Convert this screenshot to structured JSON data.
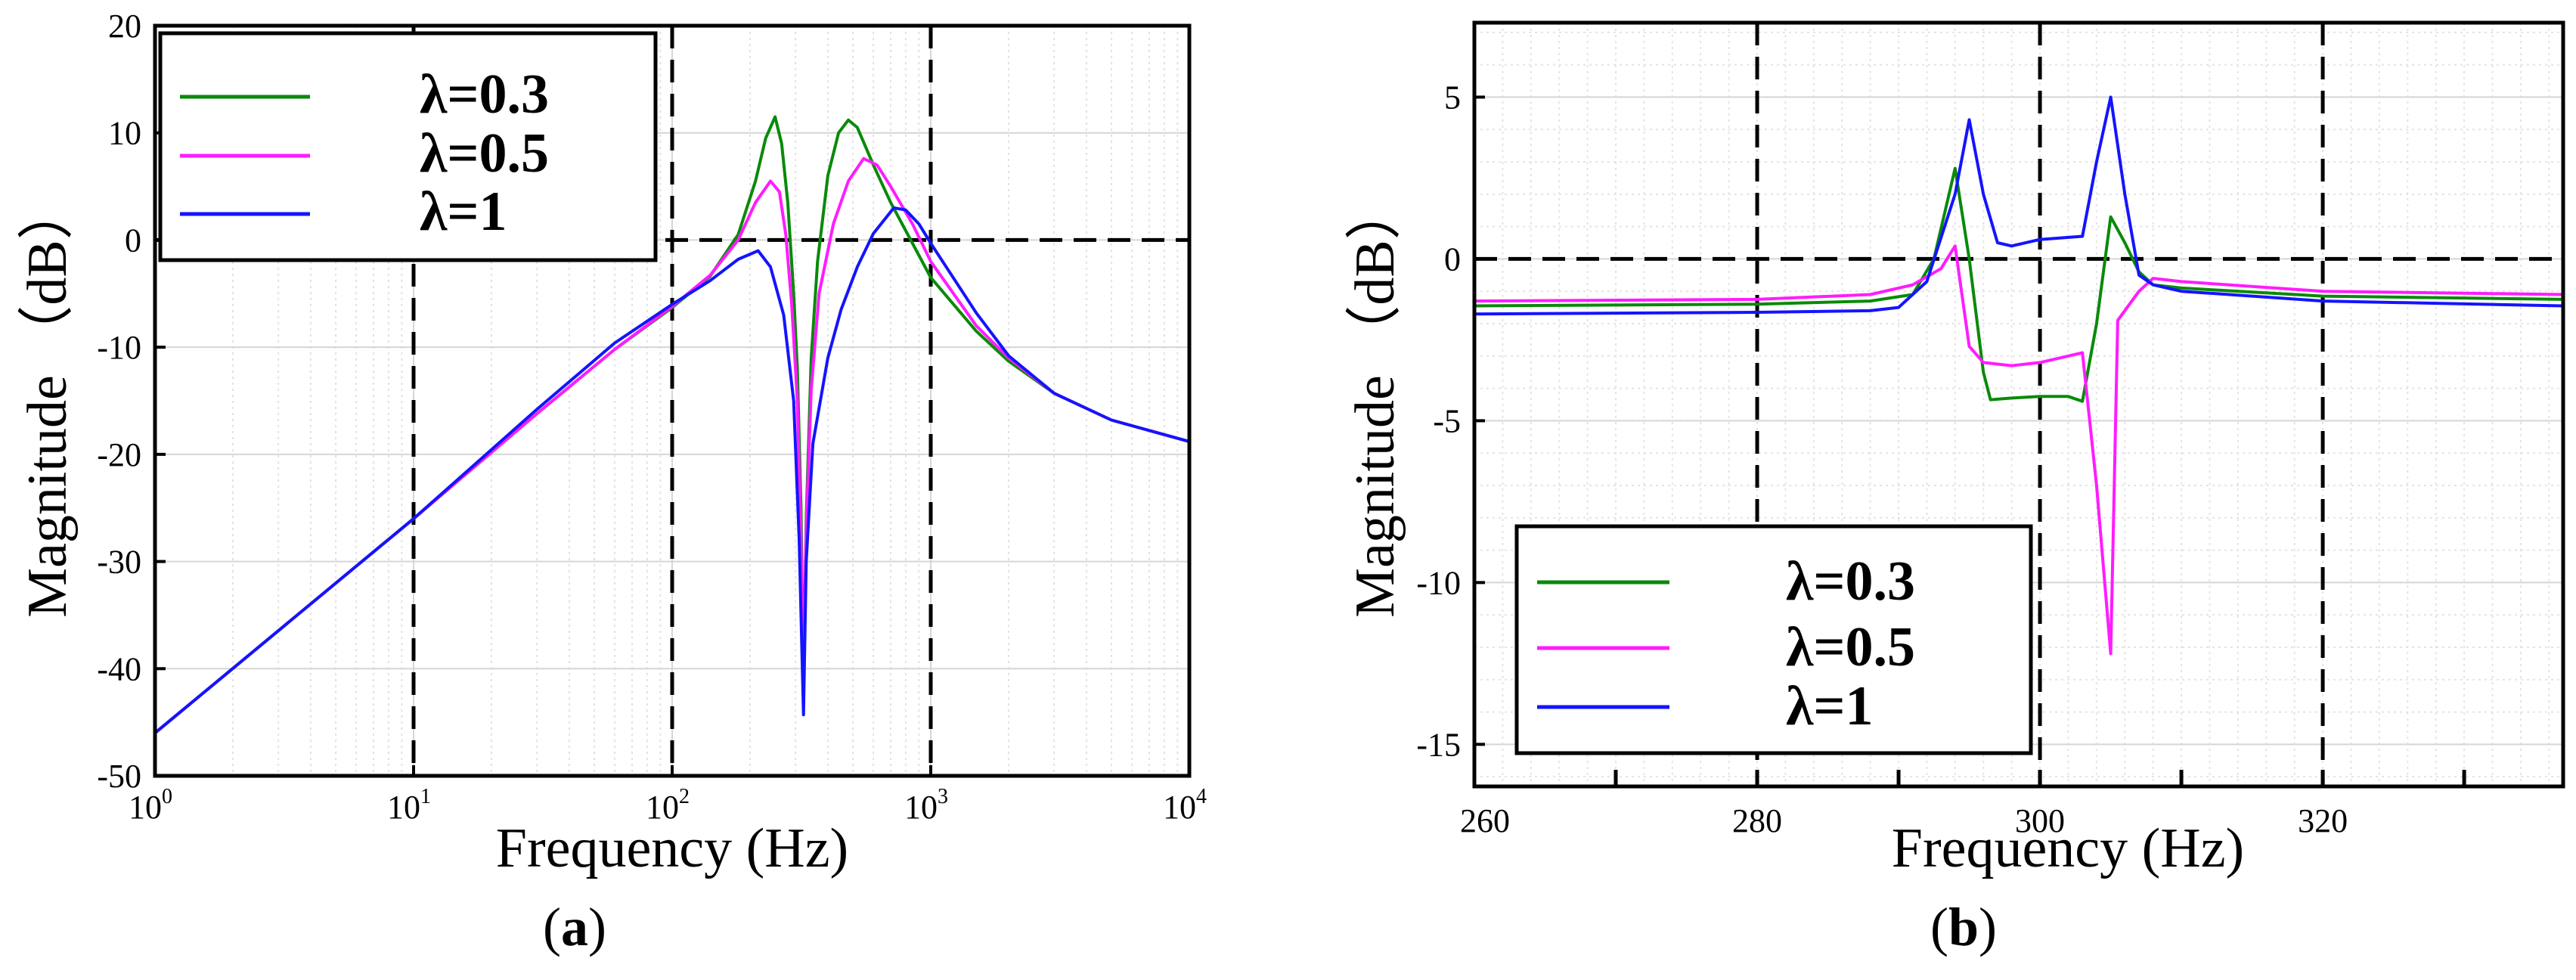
{
  "colors": {
    "l03": "#0a8a0a",
    "l05": "#ff1cff",
    "l1": "#1414ff"
  },
  "panel_a": {
    "xlabel": "Frequency (Hz)",
    "ylabel": "Magnitude （dB）",
    "caption_open": "(",
    "caption_letter": "a",
    "caption_close": ")",
    "legend": [
      "λ=0.3",
      "λ=0.5",
      "λ=1"
    ]
  },
  "panel_b": {
    "xlabel": "Frequency (Hz)",
    "ylabel": "Magnitude （dB）",
    "caption_open": "(",
    "caption_letter": "b",
    "caption_close": ")",
    "legend": [
      "λ=0.3",
      "λ=0.5",
      "λ=1"
    ]
  },
  "chart_data": [
    {
      "type": "line",
      "title": "",
      "xlabel": "Frequency (Hz)",
      "ylabel": "Magnitude （dB）",
      "xscale": "log",
      "xlim": [
        1,
        10000
      ],
      "ylim": [
        -50,
        20
      ],
      "xticks": [
        {
          "value": 1,
          "base": "10",
          "exp": "0"
        },
        {
          "value": 10,
          "base": "10",
          "exp": "1"
        },
        {
          "value": 100,
          "base": "10",
          "exp": "2"
        },
        {
          "value": 1000,
          "base": "10",
          "exp": "3"
        },
        {
          "value": 10000,
          "base": "10",
          "exp": "4"
        }
      ],
      "yticks": [
        20,
        10,
        0,
        -10,
        -20,
        -30,
        -40,
        -50
      ],
      "reference_lines": {
        "vertical": [
          10,
          100,
          1000
        ],
        "horizontal": [
          0
        ]
      },
      "grid": true,
      "legend_position": "top-left",
      "series": [
        {
          "name": "λ=0.3",
          "color": "#0a8a0a",
          "points": [
            [
              1,
              -46
            ],
            [
              10,
              -26
            ],
            [
              30,
              -16.2
            ],
            [
              60,
              -10.2
            ],
            [
              100,
              -6.3
            ],
            [
              140,
              -3.4
            ],
            [
              180,
              0.5
            ],
            [
              210,
              5.5
            ],
            [
              230,
              9.5
            ],
            [
              250,
              11.5
            ],
            [
              265,
              9
            ],
            [
              280,
              3.5
            ],
            [
              295,
              -5
            ],
            [
              305,
              -12
            ],
            [
              315,
              -25
            ],
            [
              322,
              -42
            ],
            [
              330,
              -26
            ],
            [
              345,
              -11
            ],
            [
              365,
              -2
            ],
            [
              400,
              6
            ],
            [
              440,
              10
            ],
            [
              480,
              11.2
            ],
            [
              520,
              10.5
            ],
            [
              600,
              7
            ],
            [
              700,
              3.5
            ],
            [
              1000,
              -3.5
            ],
            [
              1500,
              -8.5
            ],
            [
              2000,
              -11.3
            ],
            [
              3000,
              -14.3
            ],
            [
              5000,
              -16.8
            ],
            [
              10000,
              -18.8
            ]
          ]
        },
        {
          "name": "λ=0.5",
          "color": "#ff1cff",
          "points": [
            [
              1,
              -46
            ],
            [
              10,
              -26
            ],
            [
              30,
              -16.2
            ],
            [
              60,
              -10.2
            ],
            [
              100,
              -6.2
            ],
            [
              140,
              -3.3
            ],
            [
              180,
              0
            ],
            [
              210,
              3.5
            ],
            [
              240,
              5.5
            ],
            [
              260,
              4.5
            ],
            [
              275,
              0.5
            ],
            [
              290,
              -6
            ],
            [
              305,
              -15
            ],
            [
              315,
              -28
            ],
            [
              322,
              -42
            ],
            [
              330,
              -27
            ],
            [
              345,
              -14
            ],
            [
              370,
              -5
            ],
            [
              420,
              1.5
            ],
            [
              480,
              5.5
            ],
            [
              550,
              7.6
            ],
            [
              620,
              7
            ],
            [
              700,
              5
            ],
            [
              850,
              1.5
            ],
            [
              1000,
              -2
            ],
            [
              1500,
              -8
            ],
            [
              2000,
              -11
            ],
            [
              3000,
              -14.3
            ],
            [
              5000,
              -16.8
            ],
            [
              10000,
              -18.8
            ]
          ]
        },
        {
          "name": "λ=1",
          "color": "#1414ff",
          "points": [
            [
              1,
              -46
            ],
            [
              10,
              -26
            ],
            [
              30,
              -15.8
            ],
            [
              60,
              -9.6
            ],
            [
              100,
              -6
            ],
            [
              140,
              -3.8
            ],
            [
              180,
              -1.8
            ],
            [
              215,
              -1
            ],
            [
              240,
              -2.5
            ],
            [
              270,
              -7
            ],
            [
              295,
              -15
            ],
            [
              310,
              -28
            ],
            [
              322,
              -44.3
            ],
            [
              330,
              -30
            ],
            [
              350,
              -19
            ],
            [
              400,
              -11
            ],
            [
              450,
              -6.5
            ],
            [
              520,
              -2.5
            ],
            [
              600,
              0.6
            ],
            [
              720,
              3
            ],
            [
              800,
              2.8
            ],
            [
              900,
              1.5
            ],
            [
              1000,
              -0.3
            ],
            [
              1500,
              -6.8
            ],
            [
              2000,
              -10.8
            ],
            [
              3000,
              -14.3
            ],
            [
              5000,
              -16.8
            ],
            [
              10000,
              -18.8
            ]
          ]
        }
      ]
    },
    {
      "type": "line",
      "title": "",
      "xlabel": "Frequency (Hz)",
      "ylabel": "Magnitude （dB）",
      "xscale": "linear",
      "xlim": [
        260,
        337
      ],
      "ylim": [
        -16.3,
        7.3
      ],
      "xticks": [
        260,
        280,
        300,
        320
      ],
      "yticks": [
        5,
        0,
        -5,
        -10,
        -15
      ],
      "reference_lines": {
        "vertical": [
          280,
          300,
          320
        ],
        "horizontal": [
          0
        ]
      },
      "grid": true,
      "legend_position": "bottom-left",
      "series": [
        {
          "name": "λ=0.3",
          "color": "#0a8a0a",
          "points": [
            [
              260,
              -1.45
            ],
            [
              280,
              -1.4
            ],
            [
              288,
              -1.3
            ],
            [
              291,
              -1.1
            ],
            [
              292.5,
              0
            ],
            [
              294,
              2.8
            ],
            [
              295,
              0
            ],
            [
              296,
              -3.5
            ],
            [
              296.5,
              -4.35
            ],
            [
              298,
              -4.3
            ],
            [
              300,
              -4.25
            ],
            [
              302,
              -4.25
            ],
            [
              303,
              -4.4
            ],
            [
              304,
              -2
            ],
            [
              305,
              1.3
            ],
            [
              306,
              0.5
            ],
            [
              307,
              -0.4
            ],
            [
              308,
              -0.8
            ],
            [
              310,
              -0.9
            ],
            [
              320,
              -1.15
            ],
            [
              337,
              -1.25
            ]
          ]
        },
        {
          "name": "λ=0.5",
          "color": "#ff1cff",
          "points": [
            [
              260,
              -1.3
            ],
            [
              280,
              -1.25
            ],
            [
              288,
              -1.1
            ],
            [
              291,
              -0.8
            ],
            [
              293,
              -0.3
            ],
            [
              294,
              0.4
            ],
            [
              295,
              -2.7
            ],
            [
              296,
              -3.2
            ],
            [
              298,
              -3.3
            ],
            [
              300,
              -3.2
            ],
            [
              302,
              -3
            ],
            [
              303,
              -2.9
            ],
            [
              304,
              -7
            ],
            [
              305,
              -12.2
            ],
            [
              305.5,
              -1.9
            ],
            [
              307,
              -1
            ],
            [
              308,
              -0.6
            ],
            [
              310,
              -0.7
            ],
            [
              320,
              -1
            ],
            [
              337,
              -1.1
            ]
          ]
        },
        {
          "name": "λ=1",
          "color": "#1414ff",
          "points": [
            [
              260,
              -1.7
            ],
            [
              280,
              -1.65
            ],
            [
              288,
              -1.6
            ],
            [
              290,
              -1.5
            ],
            [
              292,
              -0.7
            ],
            [
              294,
              2
            ],
            [
              295,
              4.3
            ],
            [
              296,
              2
            ],
            [
              297,
              0.5
            ],
            [
              298,
              0.4
            ],
            [
              300,
              0.6
            ],
            [
              303,
              0.7
            ],
            [
              304,
              3
            ],
            [
              305,
              5
            ],
            [
              306,
              2
            ],
            [
              307,
              -0.5
            ],
            [
              308,
              -0.8
            ],
            [
              310,
              -1
            ],
            [
              320,
              -1.3
            ],
            [
              337,
              -1.45
            ]
          ]
        }
      ]
    }
  ]
}
